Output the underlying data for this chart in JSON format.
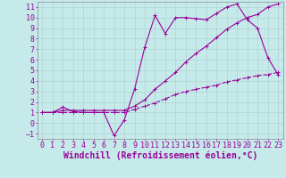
{
  "xlabel": "Windchill (Refroidissement éolien,°C)",
  "xlim": [
    -0.5,
    23.5
  ],
  "ylim": [
    -1.5,
    11.5
  ],
  "xticks": [
    0,
    1,
    2,
    3,
    4,
    5,
    6,
    7,
    8,
    9,
    10,
    11,
    12,
    13,
    14,
    15,
    16,
    17,
    18,
    19,
    20,
    21,
    22,
    23
  ],
  "yticks": [
    -1,
    0,
    1,
    2,
    3,
    4,
    5,
    6,
    7,
    8,
    9,
    10,
    11
  ],
  "bg_color": "#c6eaea",
  "line_color": "#990099",
  "line1_x": [
    0,
    1,
    2,
    3,
    4,
    5,
    6,
    7,
    8,
    9,
    10,
    11,
    12,
    13,
    14,
    15,
    16,
    17,
    18,
    19,
    20,
    21,
    22,
    23
  ],
  "line1_y": [
    1,
    1,
    1.5,
    1.1,
    1.0,
    1.0,
    1.0,
    -1.2,
    0.3,
    3.2,
    7.2,
    10.2,
    8.5,
    10.0,
    10.0,
    9.9,
    9.8,
    10.4,
    11.0,
    11.3,
    9.8,
    9.0,
    6.2,
    4.6
  ],
  "line2_x": [
    0,
    1,
    2,
    3,
    4,
    5,
    6,
    7,
    8,
    9,
    10,
    11,
    12,
    13,
    14,
    15,
    16,
    17,
    18,
    19,
    20,
    21,
    22,
    23
  ],
  "line2_y": [
    1,
    1,
    1.2,
    1.2,
    1.2,
    1.2,
    1.2,
    1.2,
    1.2,
    1.6,
    2.2,
    3.2,
    4.0,
    4.8,
    5.8,
    6.6,
    7.3,
    8.1,
    8.9,
    9.5,
    10.0,
    10.3,
    11.0,
    11.3
  ],
  "line3_x": [
    0,
    1,
    2,
    3,
    4,
    5,
    6,
    7,
    8,
    9,
    10,
    11,
    12,
    13,
    14,
    15,
    16,
    17,
    18,
    19,
    20,
    21,
    22,
    23
  ],
  "line3_y": [
    1,
    1,
    1.0,
    1.0,
    1.0,
    1.0,
    1.0,
    1.0,
    1.0,
    1.3,
    1.6,
    1.9,
    2.3,
    2.7,
    3.0,
    3.2,
    3.4,
    3.6,
    3.9,
    4.1,
    4.3,
    4.5,
    4.6,
    4.8
  ],
  "grid_color": "#aacccc",
  "font_size": 6
}
